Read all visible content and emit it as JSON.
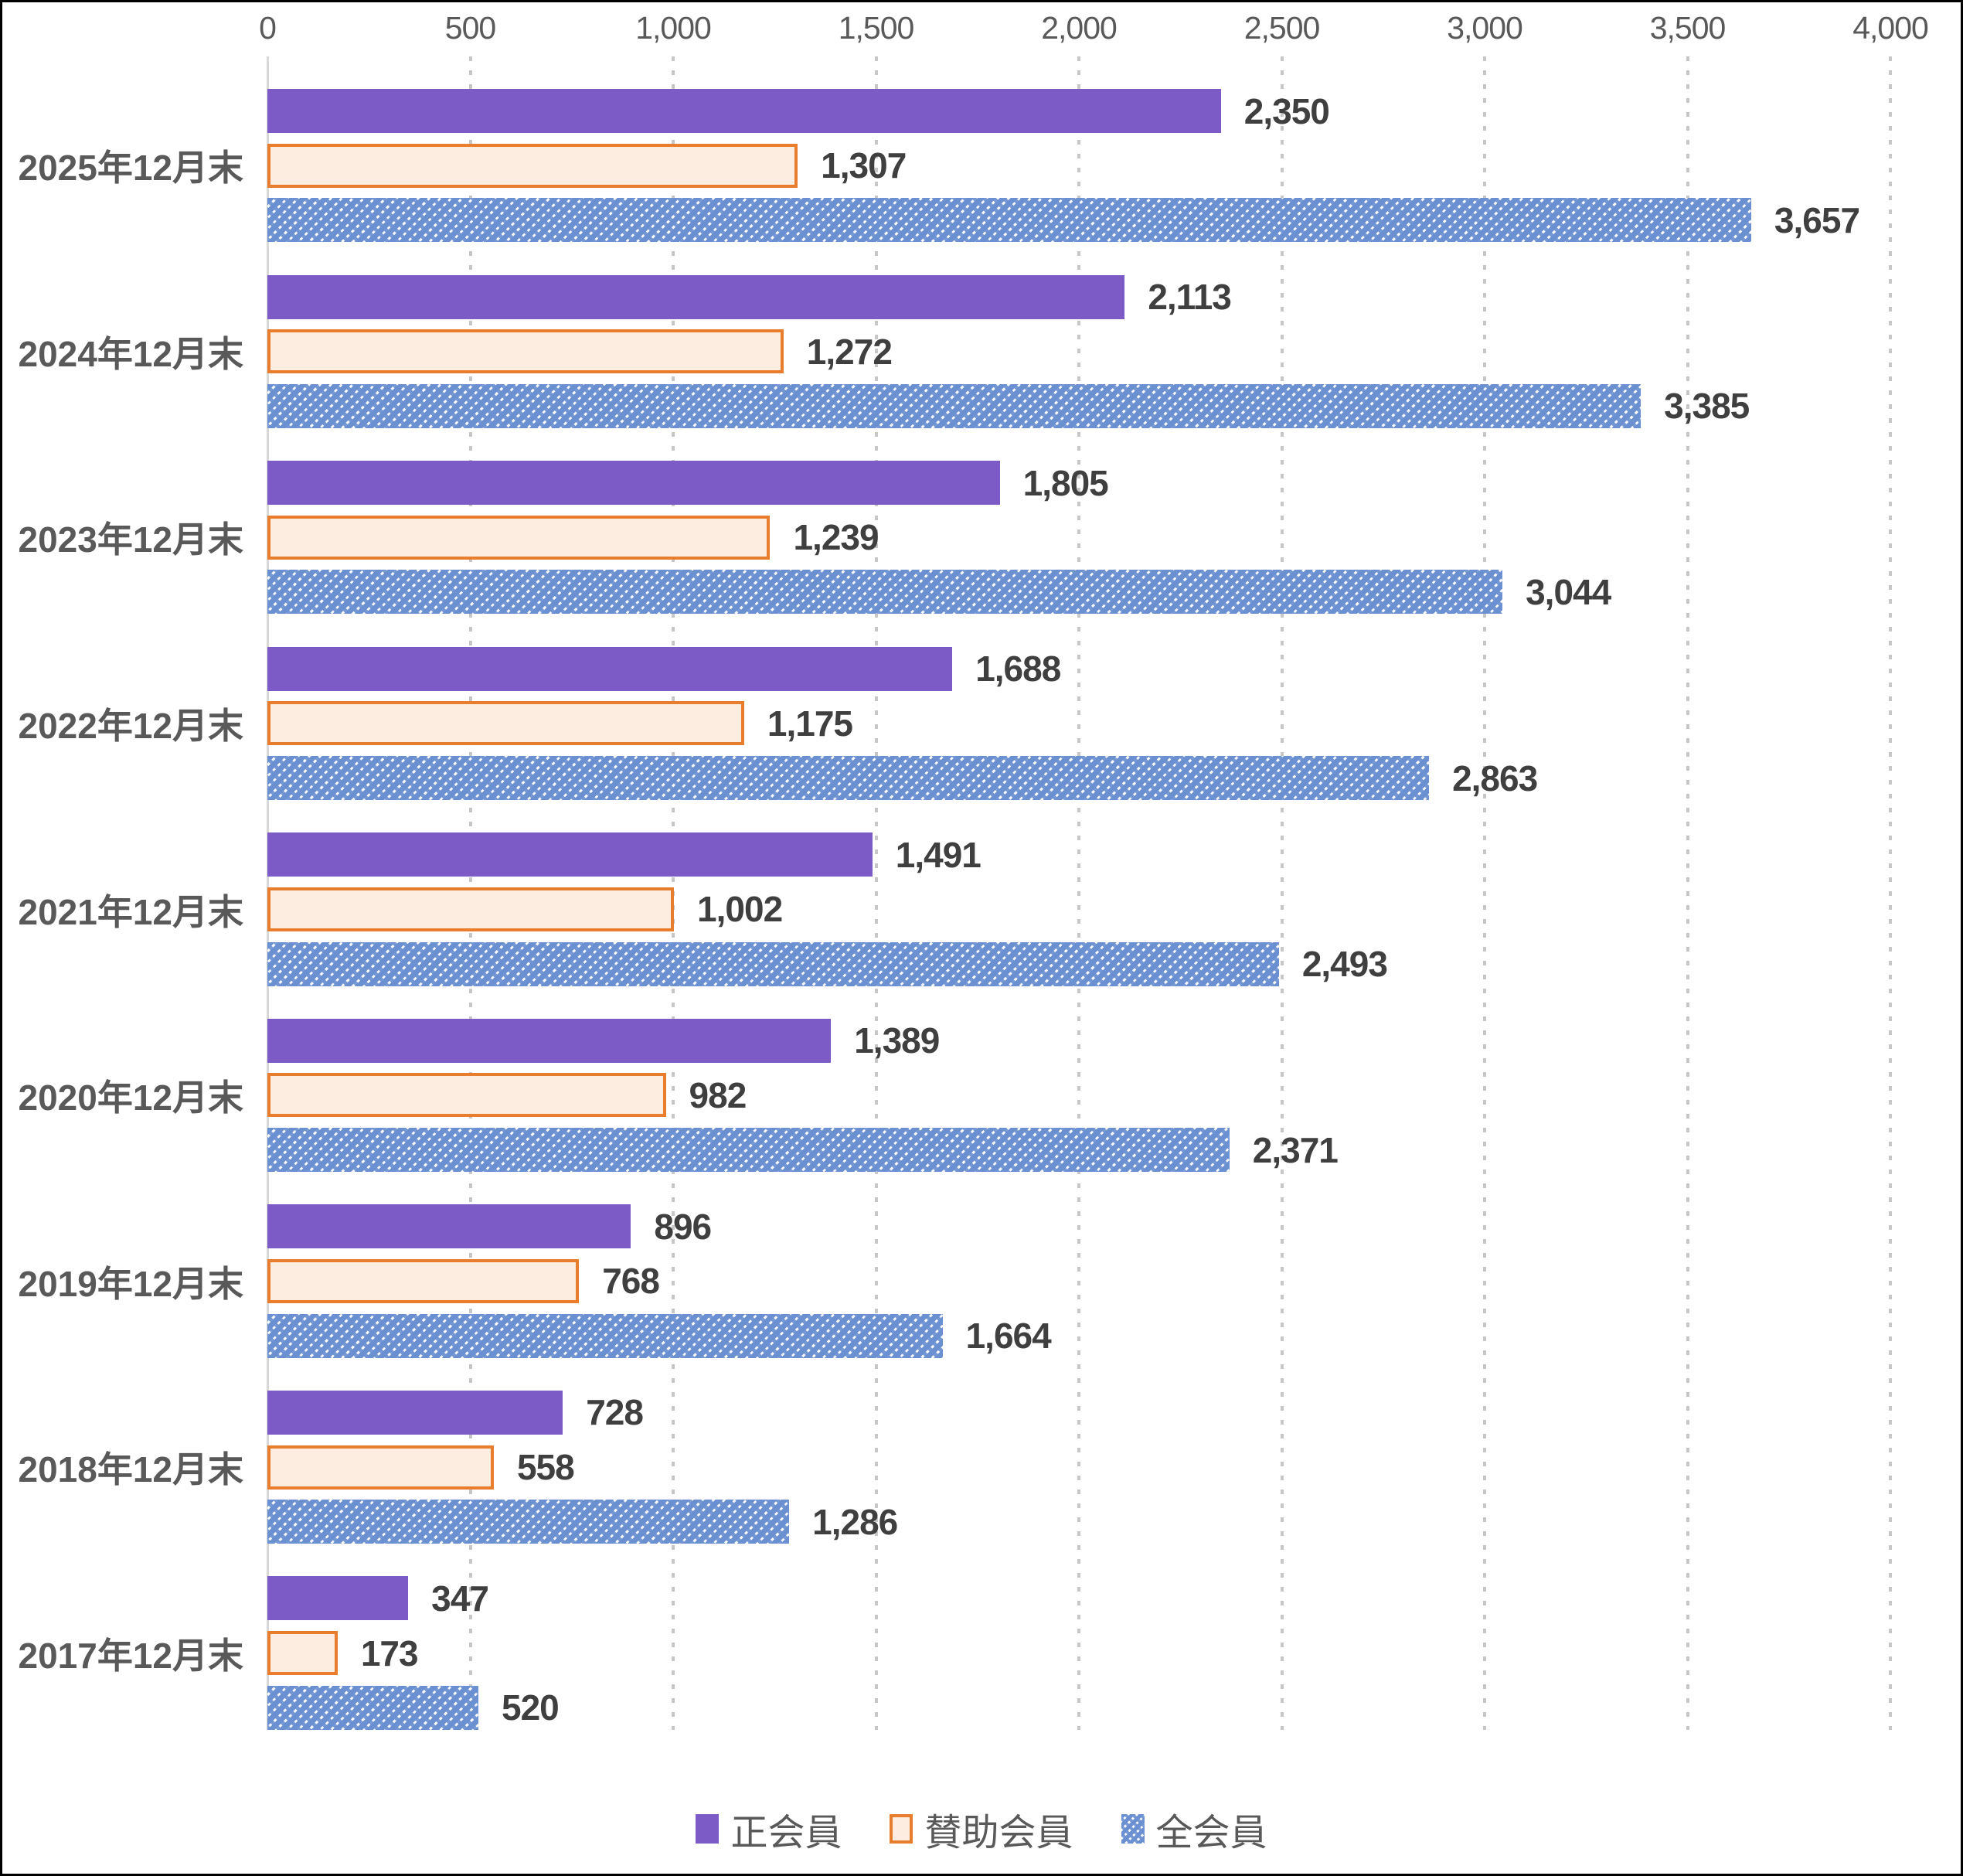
{
  "chart_data": {
    "type": "bar",
    "orientation": "horizontal",
    "title": "",
    "categories": [
      "2025年12月末",
      "2024年12月末",
      "2023年12月末",
      "2022年12月末",
      "2021年12月末",
      "2020年12月末",
      "2019年12月末",
      "2018年12月末",
      "2017年12月末"
    ],
    "series": [
      {
        "name": "正会員",
        "key": "regular-members",
        "style": "solid",
        "color": "#7d5bc6",
        "values": [
          2350,
          2113,
          1805,
          1688,
          1491,
          1389,
          896,
          728,
          347
        ],
        "labels": [
          "2,350",
          "2,113",
          "1,805",
          "1,688",
          "1,491",
          "1,389",
          "896",
          "728",
          "347"
        ]
      },
      {
        "name": "賛助会員",
        "key": "supporting-members",
        "style": "outlined",
        "fill": "#fcede0",
        "border": "#e87d2e",
        "values": [
          1307,
          1272,
          1239,
          1175,
          1002,
          982,
          768,
          558,
          173
        ],
        "labels": [
          "1,307",
          "1,272",
          "1,239",
          "1,175",
          "1,002",
          "982",
          "768",
          "558",
          "173"
        ]
      },
      {
        "name": "全会員",
        "key": "all-members",
        "style": "diagonal-hatch",
        "color": "#6b90d1",
        "values": [
          3657,
          3385,
          3044,
          2863,
          2493,
          2371,
          1664,
          1286,
          520
        ],
        "labels": [
          "3,657",
          "3,385",
          "3,044",
          "2,863",
          "2,493",
          "2,371",
          "1,664",
          "1,286",
          "520"
        ]
      }
    ],
    "x_axis": {
      "position": "top",
      "min": 0,
      "max": 4000,
      "tick_step": 500,
      "ticks": [
        "0",
        "500",
        "1,000",
        "1,500",
        "2,000",
        "2,500",
        "3,000",
        "3,500",
        "4,000"
      ],
      "gridlines": "dotted",
      "gridline_color": "#c7c7c7",
      "axis_line_color": "#d8d8d8",
      "tick_label_color": "#595959"
    },
    "data_label_color": "#3f3f3f",
    "category_label_color": "#595959",
    "legend": {
      "position": "bottom",
      "entries": [
        "正会員",
        "賛助会員",
        "全会員"
      ]
    }
  }
}
